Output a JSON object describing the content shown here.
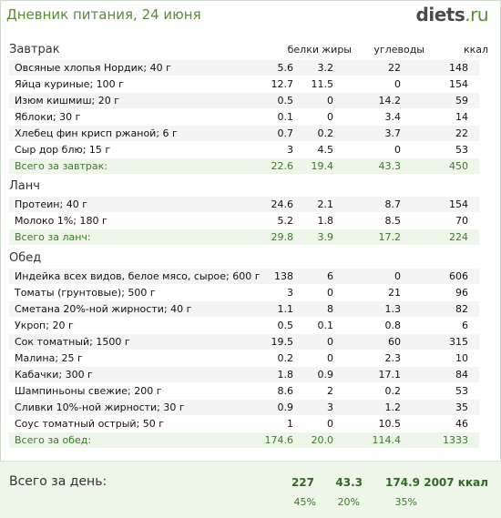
{
  "header": {
    "title": "Дневник питания, 24 июня",
    "logo_main": "diets",
    "logo_dot": ".",
    "logo_tld": "ru"
  },
  "columns": [
    "белки",
    "жиры",
    "углеводы",
    "ккал"
  ],
  "sections": [
    {
      "name": "Завтрак",
      "rows": [
        [
          "Овсяные хлопья Нордик; 40 г",
          "5.6",
          "3.2",
          "22",
          "148"
        ],
        [
          "Яйца куриные; 100 г",
          "12.7",
          "11.5",
          "0",
          "154"
        ],
        [
          "Изюм кишмиш; 20 г",
          "0.5",
          "0",
          "14.2",
          "59"
        ],
        [
          "Яблоки; 30 г",
          "0.1",
          "0",
          "3.4",
          "14"
        ],
        [
          "Хлебец фин крисп ржаной; 6 г",
          "0.7",
          "0.2",
          "3.7",
          "22"
        ],
        [
          "Сыр дор блю; 15 г",
          "3",
          "4.5",
          "0",
          "53"
        ]
      ],
      "total": [
        "Всего за завтрак:",
        "22.6",
        "19.4",
        "43.3",
        "450"
      ]
    },
    {
      "name": "Ланч",
      "rows": [
        [
          "Протеин; 40 г",
          "24.6",
          "2.1",
          "8.7",
          "154"
        ],
        [
          "Молоко 1%; 180 г",
          "5.2",
          "1.8",
          "8.5",
          "70"
        ]
      ],
      "total": [
        "Всего за ланч:",
        "29.8",
        "3.9",
        "17.2",
        "224"
      ]
    },
    {
      "name": "Обед",
      "rows": [
        [
          "Индейка всех видов, белое мясо, сырое; 600 г",
          "138",
          "6",
          "0",
          "606"
        ],
        [
          "Томаты (грунтовые); 500 г",
          "3",
          "0",
          "21",
          "96"
        ],
        [
          "Сметана 20%-ной жирности; 40 г",
          "1.1",
          "8",
          "1.3",
          "82"
        ],
        [
          "Укроп; 20 г",
          "0.5",
          "0.1",
          "0.8",
          "6"
        ],
        [
          "Сок томатный; 1500 г",
          "19.5",
          "0",
          "60",
          "315"
        ],
        [
          "Малина; 25 г",
          "0.2",
          "0",
          "2.3",
          "10"
        ],
        [
          "Кабачки; 300 г",
          "1.8",
          "0.9",
          "17.1",
          "84"
        ],
        [
          "Шампиньоны свежие; 200 г",
          "8.6",
          "2",
          "0.2",
          "53"
        ],
        [
          "Сливки 10%-ной жирности; 30 г",
          "0.9",
          "3",
          "1.2",
          "35"
        ],
        [
          "Соус томатный острый; 50 г",
          "1",
          "0",
          "10.5",
          "46"
        ]
      ],
      "total": [
        "Всего за обед:",
        "174.6",
        "20.0",
        "114.4",
        "1333"
      ]
    }
  ],
  "day": {
    "label": "Всего за день:",
    "values": [
      "227",
      "43.3",
      "174.9",
      "2007 ккал"
    ],
    "percents": [
      "45%",
      "20%",
      "35%"
    ]
  }
}
